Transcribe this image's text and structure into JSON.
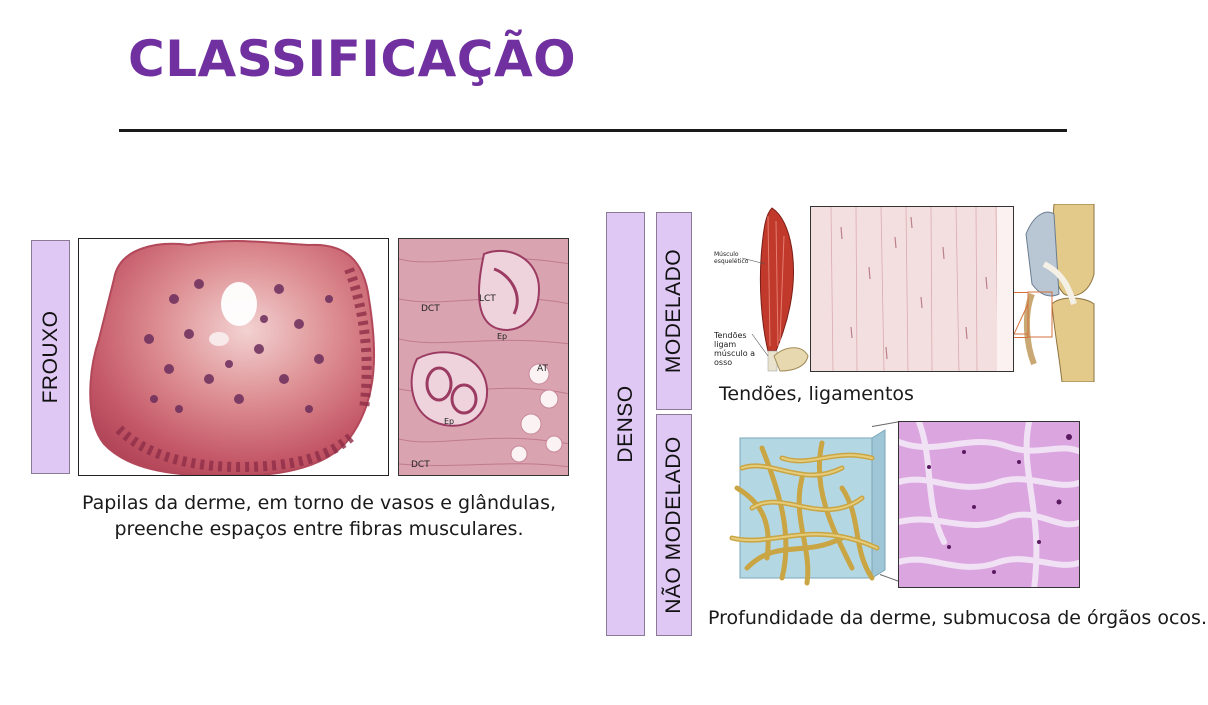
{
  "title": "CLASSIFICAÇÃO",
  "frouxo": {
    "label": "FROUXO",
    "caption_line1": "Papilas da derme, em torno de vasos e glândulas,",
    "caption_line2": "preenche espaços entre fibras musculares.",
    "micro_labels": {
      "dct_top": "DCT",
      "lct": "LCT",
      "ep_top": "Ep",
      "at": "AT",
      "ep_bottom": "Ep",
      "dct_bottom": "DCT"
    }
  },
  "denso": {
    "label": "DENSO",
    "modelado": {
      "label": "MODELADO",
      "caption": "Tendões, ligamentos",
      "diagram_labels": {
        "muscle_line1": "Músculo",
        "muscle_line2": "esquelético",
        "tendon_line1": "Tendões",
        "tendon_line2": "ligam",
        "tendon_line3": "músculo a",
        "tendon_line4": "osso"
      }
    },
    "nao_modelado": {
      "label": "NÃO MODELADO",
      "caption": "Profundidade da derme, submucosa de órgãos ocos."
    }
  },
  "colors": {
    "title": "#7030a0",
    "label_bg": "#e0c8f4",
    "rule": "#1a1a1a"
  },
  "icons": [
    "histology-papilla-image",
    "loose-connective-micrograph",
    "muscle-tendon-diagram",
    "dense-regular-micrograph",
    "knee-joint-illustration",
    "collagen-fiber-diagram",
    "dense-irregular-micrograph"
  ]
}
